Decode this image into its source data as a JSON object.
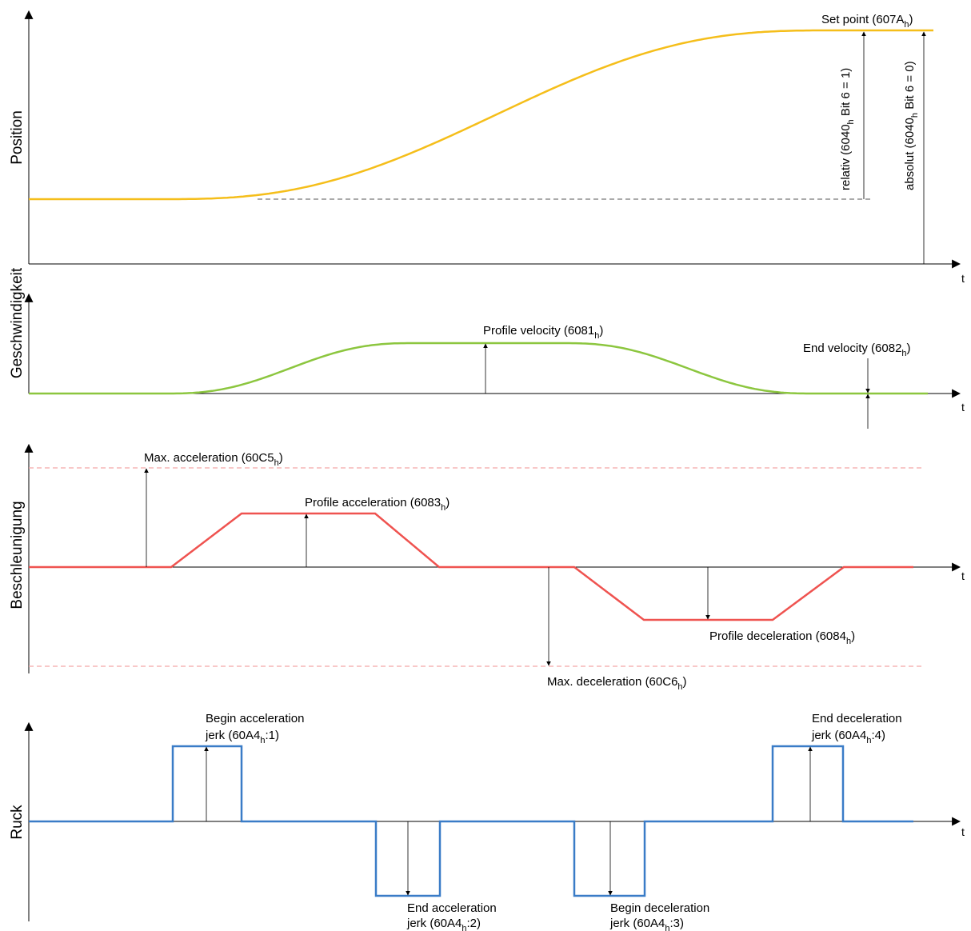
{
  "colors": {
    "position": "#F5BE1A",
    "velocity": "#8CC63F",
    "acceleration": "#EF5350",
    "jerk": "#3A7CC7",
    "max_limit": "#F4A6A6",
    "axis": "#000000",
    "dashed_ref": "#555555"
  },
  "panels": {
    "position": {
      "ylabel": "Position",
      "t_label": "t",
      "set_point": {
        "text": "Set point (607A",
        "sub": "h",
        "close": ")"
      },
      "relativ": {
        "pre": "relativ (6040",
        "sub": "h",
        "post": " Bit 6 = 1)"
      },
      "absolut": {
        "pre": "absolut (6040",
        "sub": "h",
        "post": " Bit 6 = 0)"
      }
    },
    "velocity": {
      "ylabel": "Geschwindigkeit",
      "t_label": "t",
      "profile_velocity": {
        "text": "Profile velocity (6081",
        "sub": "h",
        "close": ")"
      },
      "end_velocity": {
        "text": "End velocity (6082",
        "sub": "h",
        "close": ")"
      }
    },
    "acceleration": {
      "ylabel": "Beschleunigung",
      "t_label": "t",
      "max_acceleration": {
        "text": "Max. acceleration (60C5",
        "sub": "h",
        "close": ")"
      },
      "profile_acceleration": {
        "text": "Profile acceleration (6083",
        "sub": "h",
        "close": ")"
      },
      "profile_deceleration": {
        "text": "Profile deceleration (6084",
        "sub": "h",
        "close": ")"
      },
      "max_deceleration": {
        "text": "Max. deceleration (60C6",
        "sub": "h",
        "close": ")"
      }
    },
    "jerk": {
      "ylabel": "Ruck",
      "t_label": "t",
      "begin_acc": {
        "line1": "Begin acceleration",
        "pre": "jerk  (60A4",
        "sub": "h",
        "post": ":1)"
      },
      "end_acc": {
        "line1": "End acceleration",
        "pre": "jerk  (60A4",
        "sub": "h",
        "post": ":2)"
      },
      "begin_dec": {
        "line1": "Begin deceleration",
        "pre": "jerk  (60A4",
        "sub": "h",
        "post": ":3)"
      },
      "end_dec": {
        "line1": "End deceleration",
        "pre": "jerk  (60A4",
        "sub": "h",
        "post": ":4)"
      }
    }
  }
}
